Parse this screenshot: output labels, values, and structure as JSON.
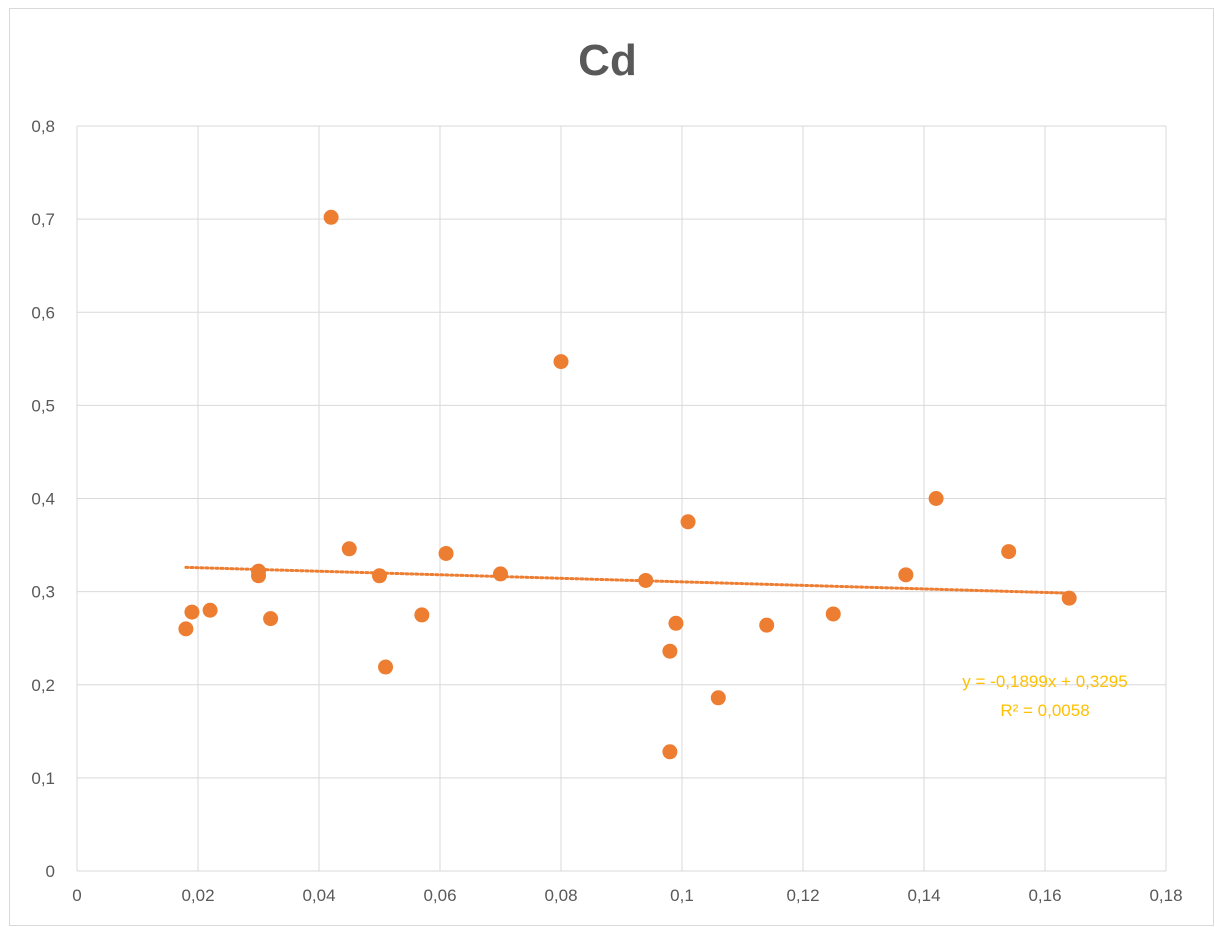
{
  "chart_data": {
    "type": "scatter",
    "title": "Cd",
    "xlabel": "",
    "ylabel": "",
    "xlim": [
      0,
      0.18
    ],
    "ylim": [
      0,
      0.8
    ],
    "x_ticks": [
      "0",
      "0,02",
      "0,04",
      "0,06",
      "0,08",
      "0,1",
      "0,12",
      "0,14",
      "0,16",
      "0,18"
    ],
    "y_ticks": [
      "0",
      "0,1",
      "0,2",
      "0,3",
      "0,4",
      "0,5",
      "0,6",
      "0,7",
      "0,8"
    ],
    "grid": true,
    "legend": "none",
    "point_color": "#ed7d31",
    "points": [
      {
        "x": 0.018,
        "y": 0.26
      },
      {
        "x": 0.019,
        "y": 0.278
      },
      {
        "x": 0.022,
        "y": 0.28
      },
      {
        "x": 0.03,
        "y": 0.322
      },
      {
        "x": 0.03,
        "y": 0.317
      },
      {
        "x": 0.032,
        "y": 0.271
      },
      {
        "x": 0.042,
        "y": 0.702
      },
      {
        "x": 0.045,
        "y": 0.346
      },
      {
        "x": 0.05,
        "y": 0.317
      },
      {
        "x": 0.051,
        "y": 0.219
      },
      {
        "x": 0.057,
        "y": 0.275
      },
      {
        "x": 0.061,
        "y": 0.341
      },
      {
        "x": 0.07,
        "y": 0.319
      },
      {
        "x": 0.08,
        "y": 0.547
      },
      {
        "x": 0.094,
        "y": 0.312
      },
      {
        "x": 0.098,
        "y": 0.236
      },
      {
        "x": 0.098,
        "y": 0.128
      },
      {
        "x": 0.099,
        "y": 0.266
      },
      {
        "x": 0.101,
        "y": 0.375
      },
      {
        "x": 0.106,
        "y": 0.186
      },
      {
        "x": 0.114,
        "y": 0.264
      },
      {
        "x": 0.125,
        "y": 0.276
      },
      {
        "x": 0.137,
        "y": 0.318
      },
      {
        "x": 0.142,
        "y": 0.4
      },
      {
        "x": 0.154,
        "y": 0.343
      },
      {
        "x": 0.164,
        "y": 0.293
      }
    ],
    "trendline": {
      "type": "linear",
      "slope": -0.1899,
      "intercept": 0.3295,
      "x_range": [
        0.018,
        0.164
      ],
      "color": "#ed7d31",
      "equation": "y = -0,1899x + 0,3295",
      "r2": "R² = 0,0058",
      "label_color": "#ffc000"
    }
  }
}
